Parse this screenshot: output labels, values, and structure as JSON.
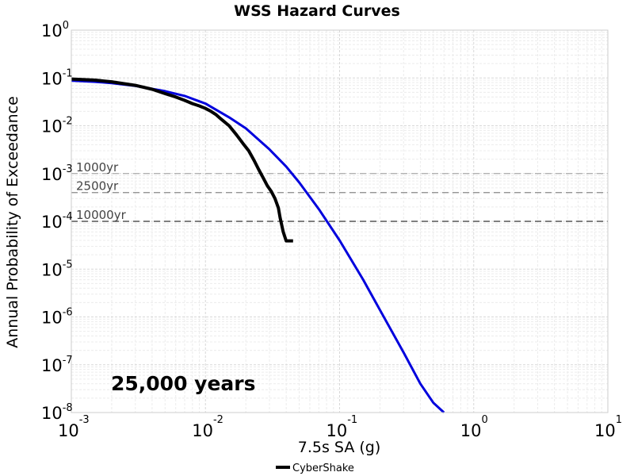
{
  "chart_data": {
    "type": "line",
    "title": "WSS Hazard Curves",
    "xlabel": "7.5s SA (g)",
    "ylabel": "Annual Probability of Exceedance",
    "x_scale": "log",
    "y_scale": "log",
    "xlim": [
      0.001,
      10
    ],
    "ylim": [
      1e-08,
      1
    ],
    "grid": true,
    "x_ticks": [
      {
        "value": 0.001,
        "base": "10",
        "exp": "-3"
      },
      {
        "value": 0.01,
        "base": "10",
        "exp": "-2"
      },
      {
        "value": 0.1,
        "base": "10",
        "exp": "-1"
      },
      {
        "value": 1,
        "base": "10",
        "exp": "0"
      },
      {
        "value": 10,
        "base": "10",
        "exp": "1"
      }
    ],
    "y_ticks": [
      {
        "value": 1,
        "base": "10",
        "exp": "0"
      },
      {
        "value": 0.1,
        "base": "10",
        "exp": "-1"
      },
      {
        "value": 0.01,
        "base": "10",
        "exp": "-2"
      },
      {
        "value": 0.001,
        "base": "10",
        "exp": "-3"
      },
      {
        "value": 0.0001,
        "base": "10",
        "exp": "-4"
      },
      {
        "value": 1e-05,
        "base": "10",
        "exp": "-5"
      },
      {
        "value": 1e-06,
        "base": "10",
        "exp": "-6"
      },
      {
        "value": 1e-07,
        "base": "10",
        "exp": "-7"
      },
      {
        "value": 1e-08,
        "base": "10",
        "exp": "-8"
      }
    ],
    "reference_lines": [
      {
        "label": "1000yr",
        "y": 0.001
      },
      {
        "label": "2500yr",
        "y": 0.0004
      },
      {
        "label": "10000yr",
        "y": 0.0001
      }
    ],
    "annotation": "25,000 years",
    "legend": {
      "placement": "bottom-center",
      "entries": [
        "CyberShake"
      ]
    },
    "series": [
      {
        "name": "CyberShake",
        "color": "#000000",
        "x": [
          0.001,
          0.0015,
          0.002,
          0.003,
          0.004,
          0.005,
          0.006,
          0.007,
          0.008,
          0.009,
          0.01,
          0.011,
          0.012,
          0.013,
          0.015,
          0.017,
          0.019,
          0.021,
          0.023,
          0.025,
          0.027,
          0.029,
          0.031,
          0.033,
          0.035,
          0.036,
          0.038,
          0.04,
          0.042,
          0.044,
          0.045
        ],
        "y": [
          0.095,
          0.09,
          0.083,
          0.07,
          0.058,
          0.047,
          0.04,
          0.034,
          0.029,
          0.026,
          0.023,
          0.02,
          0.017,
          0.014,
          0.01,
          0.0065,
          0.0043,
          0.003,
          0.0019,
          0.0012,
          0.0008,
          0.00055,
          0.00042,
          0.0003,
          0.00019,
          0.00012,
          6e-05,
          3.9e-05,
          3.9e-05,
          3.9e-05,
          3.9e-05
        ]
      },
      {
        "color": "#0000dd",
        "x": [
          0.001,
          0.0015,
          0.002,
          0.003,
          0.005,
          0.007,
          0.01,
          0.015,
          0.02,
          0.03,
          0.04,
          0.05,
          0.07,
          0.1,
          0.15,
          0.2,
          0.3,
          0.4,
          0.5,
          0.6
        ],
        "y": [
          0.088,
          0.083,
          0.078,
          0.068,
          0.053,
          0.042,
          0.029,
          0.015,
          0.0088,
          0.0032,
          0.0014,
          0.00065,
          0.00018,
          4e-05,
          6e-06,
          1.4e-06,
          1.8e-07,
          4e-08,
          1.6e-08,
          1e-08
        ]
      }
    ]
  }
}
